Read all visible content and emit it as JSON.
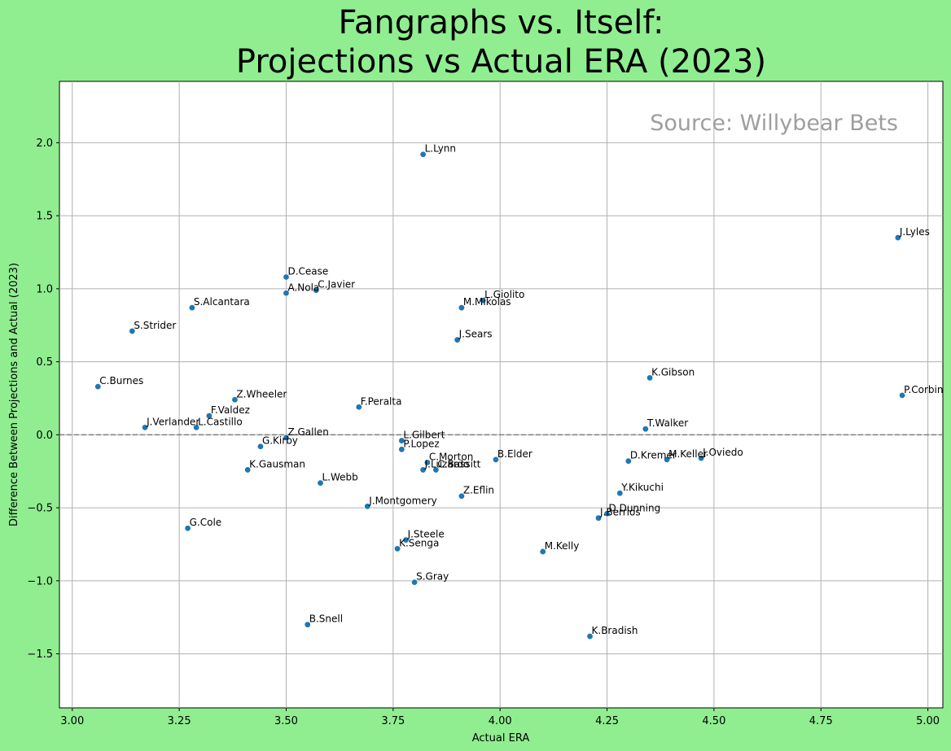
{
  "chart_data": {
    "type": "scatter",
    "title_line1": "Fangraphs vs. Itself:",
    "title_line2": "Projections vs Actual ERA (2023)",
    "xlabel": "Actual ERA",
    "ylabel": "Difference Between Projections and Actual (2023)",
    "xlim": [
      2.97,
      5.035
    ],
    "ylim": [
      -1.87,
      2.42
    ],
    "xticks": [
      3.0,
      3.25,
      3.5,
      3.75,
      4.0,
      4.25,
      4.5,
      4.75,
      5.0
    ],
    "yticks": [
      -1.5,
      -1.0,
      -0.5,
      0.0,
      0.5,
      1.0,
      1.5,
      2.0
    ],
    "xtick_labels": [
      "3.00",
      "3.25",
      "3.50",
      "3.75",
      "4.00",
      "4.25",
      "4.50",
      "4.75",
      "5.00"
    ],
    "ytick_labels": [
      "−1.5",
      "−1.0",
      "−0.5",
      "0.0",
      "0.5",
      "1.0",
      "1.5",
      "2.0"
    ],
    "grid": true,
    "reference_line_y": 0.0,
    "annotation": "Source: Willybear Bets",
    "colors": {
      "point": "#1f77b4",
      "background": "#90ee90",
      "grid": "#b0b0b0",
      "refline": "#808080",
      "watermark": "#9e9e9e"
    },
    "points": [
      {
        "label": "L.Lynn",
        "x": 3.82,
        "y": 1.92
      },
      {
        "label": "J.Lyles",
        "x": 4.93,
        "y": 1.35
      },
      {
        "label": "D.Cease",
        "x": 3.5,
        "y": 1.08
      },
      {
        "label": "A.Nola",
        "x": 3.5,
        "y": 0.97
      },
      {
        "label": "C.Javier",
        "x": 3.57,
        "y": 0.99
      },
      {
        "label": "L.Giolito",
        "x": 3.96,
        "y": 0.92
      },
      {
        "label": "M.Mikolas",
        "x": 3.91,
        "y": 0.87
      },
      {
        "label": "S.Alcantara",
        "x": 3.28,
        "y": 0.87
      },
      {
        "label": "S.Strider",
        "x": 3.14,
        "y": 0.71
      },
      {
        "label": "J.Sears",
        "x": 3.9,
        "y": 0.65
      },
      {
        "label": "K.Gibson",
        "x": 4.35,
        "y": 0.39
      },
      {
        "label": "C.Burnes",
        "x": 3.06,
        "y": 0.33
      },
      {
        "label": "P.Corbin",
        "x": 4.94,
        "y": 0.27
      },
      {
        "label": "Z.Wheeler",
        "x": 3.38,
        "y": 0.24
      },
      {
        "label": "F.Peralta",
        "x": 3.67,
        "y": 0.19
      },
      {
        "label": "F.Valdez",
        "x": 3.32,
        "y": 0.13
      },
      {
        "label": "J.Verlander",
        "x": 3.17,
        "y": 0.05
      },
      {
        "label": "L.Castillo",
        "x": 3.29,
        "y": 0.05
      },
      {
        "label": "T.Walker",
        "x": 4.34,
        "y": 0.04
      },
      {
        "label": "Z.Gallen",
        "x": 3.5,
        "y": -0.02
      },
      {
        "label": "L.Gilbert",
        "x": 3.77,
        "y": -0.04
      },
      {
        "label": "G.Kirby",
        "x": 3.44,
        "y": -0.08
      },
      {
        "label": "P.Lopez",
        "x": 3.77,
        "y": -0.1
      },
      {
        "label": "B.Elder",
        "x": 3.99,
        "y": -0.17
      },
      {
        "label": "D.Kremer",
        "x": 4.3,
        "y": -0.18
      },
      {
        "label": "M.Keller",
        "x": 4.39,
        "y": -0.17
      },
      {
        "label": "J.Oviedo",
        "x": 4.47,
        "y": -0.16
      },
      {
        "label": "C.Morton",
        "x": 3.83,
        "y": -0.19
      },
      {
        "label": "J.Luzardo",
        "x": 3.82,
        "y": -0.24
      },
      {
        "label": "C.Bassitt",
        "x": 3.85,
        "y": -0.24
      },
      {
        "label": "K.Gausman",
        "x": 3.41,
        "y": -0.24
      },
      {
        "label": "L.Webb",
        "x": 3.58,
        "y": -0.33
      },
      {
        "label": "Y.Kikuchi",
        "x": 4.28,
        "y": -0.4
      },
      {
        "label": "Z.Eflin",
        "x": 3.91,
        "y": -0.42
      },
      {
        "label": "J.Montgomery",
        "x": 3.69,
        "y": -0.49
      },
      {
        "label": "D.Dunning",
        "x": 4.25,
        "y": -0.54
      },
      {
        "label": "J.Berrios",
        "x": 4.23,
        "y": -0.57
      },
      {
        "label": "G.Cole",
        "x": 3.27,
        "y": -0.64
      },
      {
        "label": "J.Steele",
        "x": 3.78,
        "y": -0.72
      },
      {
        "label": "K.Senga",
        "x": 3.76,
        "y": -0.78
      },
      {
        "label": "M.Kelly",
        "x": 4.1,
        "y": -0.8
      },
      {
        "label": "S.Gray",
        "x": 3.8,
        "y": -1.01
      },
      {
        "label": "B.Snell",
        "x": 3.55,
        "y": -1.3
      },
      {
        "label": "K.Bradish",
        "x": 4.21,
        "y": -1.38
      }
    ]
  }
}
